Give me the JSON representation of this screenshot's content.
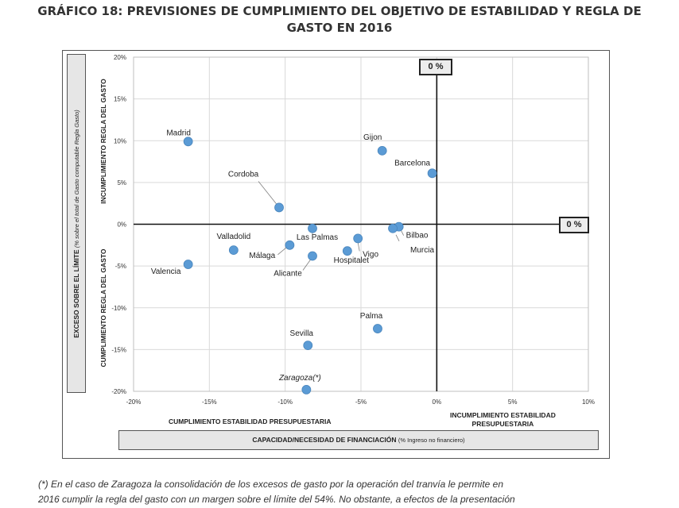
{
  "title_line1": "GRÁFICO 18: PREVISIONES DE CUMPLIMIENTO DEL OBJETIVO DE ESTABILIDAD Y REGLA DE",
  "title_line2": "GASTO EN 2016",
  "ylabel_main": "EXCESO SOBRE EL LÍMITE",
  "ylabel_note": "(% sobre el total de Gasto computable Regla Gasto)",
  "side_top": "INCUMPLIMIENTO  REGLA DEL GASTO",
  "side_bottom": "CUMPLIMIENTO  REGLA DEL GASTO",
  "xcap_left": "CUMPLIMIENTO  ESTABILIDAD PRESUPUESTARIA",
  "xcap_right_l1": "INCUMPLIMIENTO  ESTABILIDAD",
  "xcap_right_l2": "PRESUPUESTARIA",
  "xlabel_main": "CAPACIDAD/NECESIDAD DE FINANCIACIÓN",
  "xlabel_note": "(% Ingreso no financiero)",
  "zero_top": "0 %",
  "zero_right": "0 %",
  "footnote_l1": "(*) En el caso de Zaragoza la consolidación de los excesos de gasto por la operación del tranvía le permite en",
  "footnote_l2": "2016 cumplir la regla del gasto con un margen sobre el límite del 54%. No obstante, a efectos de la presentación",
  "chart_data": {
    "type": "scatter",
    "title": "PREVISIONES DE CUMPLIMIENTO DEL OBJETIVO DE ESTABILIDAD Y REGLA DE GASTO EN 2016",
    "xlabel": "CAPACIDAD/NECESIDAD DE FINANCIACIÓN (% Ingreso no financiero)",
    "ylabel": "EXCESO SOBRE EL LÍMITE (% sobre el total de Gasto computable Regla Gasto)",
    "xlim": [
      -20,
      10
    ],
    "ylim": [
      -20,
      20
    ],
    "xticks": [
      -20,
      -15,
      -10,
      -5,
      0,
      5,
      10
    ],
    "yticks": [
      -20,
      -15,
      -10,
      -5,
      0,
      5,
      10,
      15,
      20
    ],
    "xtick_labels": [
      "-20%",
      "-15%",
      "-10%",
      "-5%",
      "0%",
      "5%",
      "10%"
    ],
    "ytick_labels": [
      "-20%",
      "-15%",
      "-10%",
      "-5%",
      "0%",
      "5%",
      "10%",
      "15%",
      "20%"
    ],
    "grid": true,
    "point_color": "#5b9bd5",
    "points": [
      {
        "label": "Madrid",
        "x": -16.4,
        "y": 9.9
      },
      {
        "label": "Gijon",
        "x": -3.6,
        "y": 8.8
      },
      {
        "label": "Barcelona",
        "x": -0.3,
        "y": 6.1
      },
      {
        "label": "Cordoba",
        "x": -10.4,
        "y": 2.0
      },
      {
        "label": "Bilbao",
        "x": -2.5,
        "y": -0.3
      },
      {
        "label": "Murcia",
        "x": -2.9,
        "y": -0.5
      },
      {
        "label": "Las Palmas",
        "x": -8.2,
        "y": -0.5
      },
      {
        "label": "Vigo",
        "x": -5.2,
        "y": -1.7
      },
      {
        "label": "Valladolid",
        "x": -13.4,
        "y": -3.1
      },
      {
        "label": "Málaga",
        "x": -9.7,
        "y": -2.5
      },
      {
        "label": "Hospitalet",
        "x": -5.9,
        "y": -3.2
      },
      {
        "label": "Alicante",
        "x": -8.2,
        "y": -3.8
      },
      {
        "label": "Valencia",
        "x": -16.4,
        "y": -4.8
      },
      {
        "label": "Palma",
        "x": -3.9,
        "y": -12.5
      },
      {
        "label": "Sevilla",
        "x": -8.5,
        "y": -14.5
      },
      {
        "label": "Zaragoza(*)",
        "x": -8.6,
        "y": -19.8
      }
    ]
  }
}
